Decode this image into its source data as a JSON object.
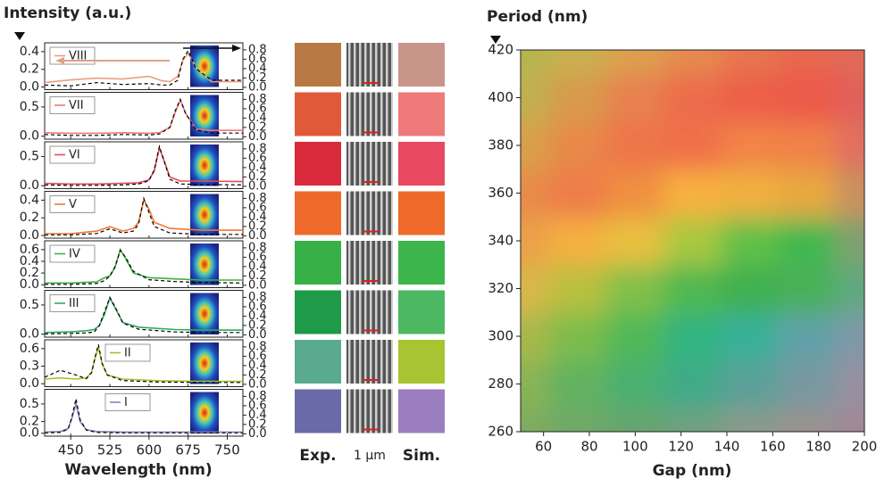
{
  "chart_data": [
    {
      "type": "spectra",
      "title": "Intensity (a.u.)",
      "xlabel": "Wavelength (nm)",
      "xlim": [
        400,
        780
      ],
      "xticks": [
        450,
        525,
        600,
        675,
        750
      ],
      "y2lim": [
        -0.05,
        0.95
      ],
      "y2ticks": [
        {
          "value": 0,
          "label": "0.0"
        },
        0.2,
        0.4,
        0.6,
        0.8
      ],
      "panels": [
        {
          "color": "#e8a080",
          "legend": "upper left",
          "ylim": [
            -0.03,
            0.5
          ],
          "yticks": [
            {
              "value": 0,
              "label": "0.0"
            },
            0.2,
            0.4
          ],
          "x": [
            400,
            450,
            500,
            550,
            600,
            625,
            640,
            655,
            665,
            675,
            690,
            720,
            780
          ],
          "series": [
            {
              "name": "VIII",
              "color": "#e8a080",
              "values": [
                0.05,
                0.08,
                0.1,
                0.09,
                0.12,
                0.07,
                0.06,
                0.12,
                0.3,
                0.38,
                0.22,
                0.06,
                0.06
              ]
            },
            {
              "color": "#000000",
              "axis": "y2",
              "values": [
                0.05,
                0.03,
                0.1,
                0.06,
                0.08,
                0.05,
                0.05,
                0.15,
                0.6,
                0.78,
                0.4,
                0.15,
                0.15
              ]
            }
          ]
        },
        {
          "color": "#f07878",
          "legend": "upper left",
          "ylim": [
            -0.05,
            0.75
          ],
          "yticks": [
            {
              "value": 0,
              "label": "0.0"
            },
            0.5
          ],
          "x": [
            400,
            450,
            500,
            550,
            600,
            620,
            640,
            650,
            660,
            670,
            690,
            720,
            780
          ],
          "series": [
            {
              "name": "VII",
              "color": "#f07878",
              "values": [
                0.06,
                0.05,
                0.05,
                0.06,
                0.05,
                0.06,
                0.15,
                0.4,
                0.62,
                0.4,
                0.12,
                0.1,
                0.1
              ]
            },
            {
              "color": "#000000",
              "axis": "y2",
              "values": [
                0.05,
                0.03,
                0.03,
                0.05,
                0.04,
                0.06,
                0.2,
                0.55,
                0.8,
                0.5,
                0.15,
                0.08,
                0.08
              ]
            }
          ]
        },
        {
          "color": "#e84858",
          "legend": "upper left",
          "ylim": [
            -0.05,
            0.75
          ],
          "yticks": [
            {
              "value": 0,
              "label": "0.0"
            },
            0.5
          ],
          "x": [
            400,
            450,
            500,
            550,
            580,
            600,
            610,
            620,
            630,
            640,
            660,
            700,
            780
          ],
          "series": [
            {
              "name": "VI",
              "color": "#e84858",
              "values": [
                0.04,
                0.03,
                0.03,
                0.04,
                0.05,
                0.1,
                0.25,
                0.65,
                0.4,
                0.15,
                0.08,
                0.08,
                0.07
              ]
            },
            {
              "color": "#000000",
              "axis": "y2",
              "values": [
                0.03,
                0.02,
                0.02,
                0.03,
                0.05,
                0.12,
                0.35,
                0.85,
                0.5,
                0.15,
                0.05,
                0.04,
                0.03
              ]
            }
          ]
        },
        {
          "color": "#f07830",
          "legend": "upper left",
          "ylim": [
            -0.03,
            0.5
          ],
          "yticks": [
            {
              "value": 0,
              "label": "0.0"
            },
            0.2,
            0.4
          ],
          "x": [
            400,
            450,
            500,
            525,
            550,
            570,
            580,
            590,
            600,
            610,
            640,
            700,
            780
          ],
          "series": [
            {
              "name": "V",
              "color": "#f07830",
              "values": [
                0.02,
                0.02,
                0.05,
                0.1,
                0.05,
                0.08,
                0.15,
                0.4,
                0.3,
                0.15,
                0.08,
                0.06,
                0.06
              ]
            },
            {
              "color": "#000000",
              "axis": "y2",
              "values": [
                0.02,
                0.02,
                0.05,
                0.15,
                0.06,
                0.1,
                0.25,
                0.8,
                0.5,
                0.2,
                0.06,
                0.03,
                0.03
              ]
            }
          ]
        },
        {
          "color": "#40b040",
          "legend": "upper left",
          "ylim": [
            -0.05,
            0.75
          ],
          "yticks": [
            {
              "value": 0,
              "label": "0.0"
            },
            0.2,
            0.4,
            0.6
          ],
          "x": [
            400,
            450,
            500,
            515,
            525,
            535,
            545,
            555,
            570,
            600,
            650,
            700,
            780
          ],
          "series": [
            {
              "name": "IV",
              "color": "#40b040",
              "values": [
                0.03,
                0.03,
                0.05,
                0.12,
                0.15,
                0.3,
                0.6,
                0.45,
                0.2,
                0.12,
                0.1,
                0.08,
                0.08
              ]
            },
            {
              "color": "#000000",
              "axis": "y2",
              "values": [
                0.02,
                0.02,
                0.04,
                0.1,
                0.2,
                0.4,
                0.75,
                0.6,
                0.3,
                0.12,
                0.08,
                0.06,
                0.05
              ]
            }
          ]
        },
        {
          "color": "#30a860",
          "legend": "upper left",
          "ylim": [
            -0.05,
            0.75
          ],
          "yticks": [
            {
              "value": 0,
              "label": "0.0"
            },
            0.5
          ],
          "x": [
            400,
            450,
            480,
            495,
            505,
            515,
            525,
            535,
            550,
            580,
            650,
            700,
            780
          ],
          "series": [
            {
              "name": "III",
              "color": "#30a860",
              "values": [
                0.03,
                0.04,
                0.06,
                0.08,
                0.15,
                0.35,
                0.62,
                0.45,
                0.2,
                0.12,
                0.08,
                0.07,
                0.07
              ]
            },
            {
              "color": "#000000",
              "axis": "y2",
              "values": [
                0.02,
                0.03,
                0.04,
                0.06,
                0.2,
                0.5,
                0.8,
                0.6,
                0.25,
                0.12,
                0.06,
                0.05,
                0.05
              ]
            }
          ]
        },
        {
          "color": "#a8c030",
          "legend": "upper center",
          "ylim": [
            -0.05,
            0.75
          ],
          "yticks": [
            {
              "value": 0,
              "label": "0.0"
            },
            0.3,
            0.6
          ],
          "x": [
            400,
            430,
            460,
            480,
            490,
            497,
            503,
            510,
            520,
            550,
            620,
            700,
            780
          ],
          "series": [
            {
              "name": "II",
              "color": "#a8c030",
              "values": [
                0.08,
                0.1,
                0.08,
                0.1,
                0.2,
                0.45,
                0.62,
                0.35,
                0.15,
                0.08,
                0.05,
                0.04,
                0.04
              ]
            },
            {
              "color": "#000000",
              "axis": "y2",
              "values": [
                0.15,
                0.3,
                0.2,
                0.12,
                0.25,
                0.6,
                0.85,
                0.45,
                0.2,
                0.08,
                0.05,
                0.04,
                0.04
              ]
            }
          ]
        },
        {
          "color": "#9080c0",
          "legend": "upper center",
          "ylim": [
            -0.05,
            0.75
          ],
          "yticks": [
            {
              "value": 0,
              "label": "0.0"
            },
            0.2,
            0.5
          ],
          "x": [
            400,
            430,
            445,
            452,
            460,
            468,
            480,
            500,
            550,
            600,
            650,
            700,
            780
          ],
          "series": [
            {
              "name": "I",
              "color": "#9080c0",
              "values": [
                0.02,
                0.03,
                0.08,
                0.25,
                0.5,
                0.2,
                0.06,
                0.03,
                0.02,
                0.02,
                0.02,
                0.02,
                0.02
              ]
            },
            {
              "color": "#000000",
              "axis": "y2",
              "values": [
                0.02,
                0.03,
                0.1,
                0.35,
                0.75,
                0.3,
                0.08,
                0.03,
                0.02,
                0.02,
                0.02,
                0.02,
                0.02
              ]
            }
          ]
        }
      ]
    },
    {
      "type": "swatch",
      "labels": [
        "Exp.",
        "1 µm",
        "Sim."
      ],
      "exp_colors": [
        "#b87a44",
        "#e05a3a",
        "#d82a3a",
        "#ee6a2a",
        "#38b048",
        "#1e9a48",
        "#5aaa90",
        "#6a6aa8"
      ],
      "sim_colors": [
        "#c8958a",
        "#ee7a7a",
        "#e84860",
        "#ef6a2a",
        "#3cb54a",
        "#4cb862",
        "#a8c432",
        "#9a7ec0"
      ]
    },
    {
      "type": "heatmap",
      "xlabel": "Gap (nm)",
      "ylabel": "Period (nm)",
      "xlim": [
        50,
        200
      ],
      "ylim": [
        260,
        420
      ],
      "xticks": [
        60,
        80,
        100,
        120,
        140,
        160,
        180,
        200
      ],
      "yticks": [
        260,
        280,
        300,
        320,
        340,
        360,
        380,
        400,
        420
      ],
      "x": [
        50,
        75,
        100,
        125,
        150,
        175,
        200
      ],
      "y": [
        260,
        280,
        300,
        320,
        340,
        360,
        380,
        400,
        420
      ],
      "colors": [
        [
          "#80aa60",
          "#70a868",
          "#68a470",
          "#70a080",
          "#8a9a8a",
          "#9a9290",
          "#a08898"
        ],
        [
          "#88b454",
          "#60b260",
          "#48b070",
          "#40aa88",
          "#5aa098",
          "#7898a0",
          "#9890a0"
        ],
        [
          "#a8b84c",
          "#7cbc4c",
          "#50b858",
          "#30b480",
          "#38b098",
          "#60a0a8",
          "#8098a8"
        ],
        [
          "#d8b848",
          "#b8c040",
          "#80c048",
          "#50b850",
          "#40b050",
          "#48b058",
          "#60a880"
        ],
        [
          "#eba04a",
          "#f4b040",
          "#e8c040",
          "#a8c840",
          "#60c048",
          "#40b850",
          "#80a070"
        ],
        [
          "#e88a4a",
          "#ee7c4a",
          "#f09040",
          "#f8b040",
          "#f0b040",
          "#e8a840",
          "#c89060"
        ],
        [
          "#d8a048",
          "#e8884a",
          "#ee744a",
          "#f0704a",
          "#f28446",
          "#f0824a",
          "#e07060"
        ],
        [
          "#c0b050",
          "#d89a4e",
          "#e88050",
          "#ec6c4c",
          "#ec5e4a",
          "#ec584a",
          "#e0605a"
        ],
        [
          "#b5b550",
          "#c8b050",
          "#dca050",
          "#e68a50",
          "#e87550",
          "#e86850",
          "#e06a58"
        ]
      ]
    }
  ]
}
